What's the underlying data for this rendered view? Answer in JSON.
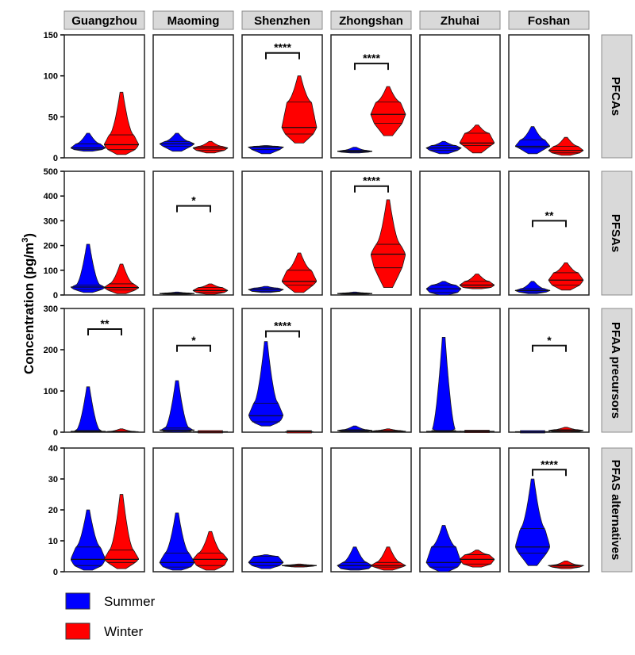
{
  "chart_data": {
    "type": "violin",
    "ylabel": "Concentration (pg/m³)",
    "ylabel_parts": {
      "main": "Concentration (pg/m",
      "sup": "3",
      "end": ")"
    },
    "columns": [
      "Guangzhou",
      "Maoming",
      "Shenzhen",
      "Zhongshan",
      "Zhuhai",
      "Foshan"
    ],
    "legend": {
      "placement": "bottom-left",
      "entries": [
        {
          "name": "Summer",
          "color": "#0000ff"
        },
        {
          "name": "Winter",
          "color": "#ff0000"
        }
      ]
    },
    "stat_fields": [
      "min",
      "q1",
      "median",
      "q3",
      "max"
    ],
    "rows": [
      {
        "label": "PFCAs",
        "ylim": [
          0,
          150
        ],
        "ticks": [
          "0",
          "50",
          "100",
          "150"
        ],
        "panels": [
          {
            "summer": [
              8,
              10,
              12,
              17,
              30
            ],
            "winter": [
              4,
              10,
              16,
              28,
              80
            ]
          },
          {
            "summer": [
              8,
              14,
              17,
              20,
              30
            ],
            "winter": [
              6,
              9,
              12,
              14,
              20
            ]
          },
          {
            "summer": [
              5,
              10,
              13,
              14,
              15
            ],
            "winter": [
              18,
              29,
              37,
              68,
              100
            ],
            "sig": "****",
            "sig_y": 128
          },
          {
            "summer": [
              6,
              7,
              8,
              9,
              13
            ],
            "winter": [
              27,
              42,
              53,
              68,
              87
            ],
            "sig": "****",
            "sig_y": 115
          },
          {
            "summer": [
              5,
              9,
              12,
              15,
              20
            ],
            "winter": [
              6,
              15,
              18,
              30,
              40
            ]
          },
          {
            "summer": [
              5,
              12,
              14,
              22,
              38
            ],
            "winter": [
              3,
              6,
              9,
              14,
              25
            ]
          }
        ]
      },
      {
        "label": "PFSAs",
        "ylim": [
          0,
          500
        ],
        "ticks": [
          "0",
          "100",
          "200",
          "300",
          "400",
          "500"
        ],
        "panels": [
          {
            "summer": [
              10,
              22,
              32,
              40,
              205
            ],
            "winter": [
              5,
              20,
              30,
              45,
              125
            ]
          },
          {
            "summer": [
              2,
              4,
              6,
              8,
              12
            ],
            "winter": [
              3,
              10,
              18,
              30,
              45
            ],
            "sig": "*",
            "sig_y": 360
          },
          {
            "summer": [
              10,
              15,
              22,
              28,
              35
            ],
            "winter": [
              10,
              40,
              55,
              100,
              170
            ]
          },
          {
            "summer": [
              2,
              4,
              6,
              8,
              12
            ],
            "winter": [
              30,
              110,
              165,
              205,
              385
            ],
            "sig": "****",
            "sig_y": 440
          },
          {
            "summer": [
              0,
              10,
              25,
              40,
              55
            ],
            "winter": [
              25,
              30,
              40,
              55,
              85
            ]
          },
          {
            "summer": [
              5,
              12,
              18,
              25,
              55
            ],
            "winter": [
              20,
              40,
              60,
              90,
              130
            ],
            "sig": "**",
            "sig_y": 300
          }
        ]
      },
      {
        "label": "PFAA precursors",
        "ylim": [
          0,
          300
        ],
        "ticks": [
          "0",
          "100",
          "200",
          "300"
        ],
        "panels": [
          {
            "summer": [
              0,
              1,
              2,
              4,
              110
            ],
            "winter": [
              0,
              1,
              1,
              2,
              8
            ],
            "sig": "**",
            "sig_y": 250
          },
          {
            "summer": [
              0,
              2,
              5,
              10,
              125
            ],
            "winter": [
              0,
              0,
              1,
              1,
              2
            ],
            "sig": "*",
            "sig_y": 210
          },
          {
            "summer": [
              15,
              25,
              40,
              70,
              220
            ],
            "winter": [
              0,
              1,
              1,
              2,
              4
            ],
            "sig": "****",
            "sig_y": 245
          },
          {
            "summer": [
              0,
              2,
              4,
              6,
              15
            ],
            "winter": [
              0,
              1,
              2,
              4,
              8
            ]
          },
          {
            "summer": [
              0,
              1,
              2,
              4,
              230
            ],
            "winter": [
              0,
              1,
              2,
              3,
              4
            ]
          },
          {
            "summer": [
              0,
              0,
              1,
              1,
              2
            ],
            "winter": [
              0,
              2,
              4,
              6,
              12
            ],
            "sig": "*",
            "sig_y": 210
          }
        ]
      },
      {
        "label": "PFAS alternatives",
        "ylim": [
          0,
          40
        ],
        "ticks": [
          "0",
          "10",
          "20",
          "30",
          "40"
        ],
        "panels": [
          {
            "summer": [
              0.5,
              2,
              4,
              8,
              20
            ],
            "winter": [
              1,
              3,
              4,
              7,
              25
            ]
          },
          {
            "summer": [
              0.5,
              1.5,
              3,
              6,
              19
            ],
            "winter": [
              0.5,
              2,
              4,
              6,
              13
            ]
          },
          {
            "summer": [
              1,
              2,
              3,
              5,
              5.5
            ],
            "winter": [
              1.5,
              1.8,
              2,
              2.2,
              2.5
            ]
          },
          {
            "summer": [
              0.5,
              1,
              2,
              3,
              8
            ],
            "winter": [
              0.5,
              1.5,
              2,
              3,
              8
            ]
          },
          {
            "summer": [
              0,
              1.5,
              3,
              8,
              15
            ],
            "winter": [
              1.5,
              2.5,
              4,
              5.5,
              7
            ]
          },
          {
            "summer": [
              2,
              6,
              8,
              14,
              30
            ],
            "winter": [
              1,
              1.5,
              2,
              2.2,
              3.5
            ],
            "sig": "****",
            "sig_y": 33
          }
        ]
      }
    ]
  }
}
